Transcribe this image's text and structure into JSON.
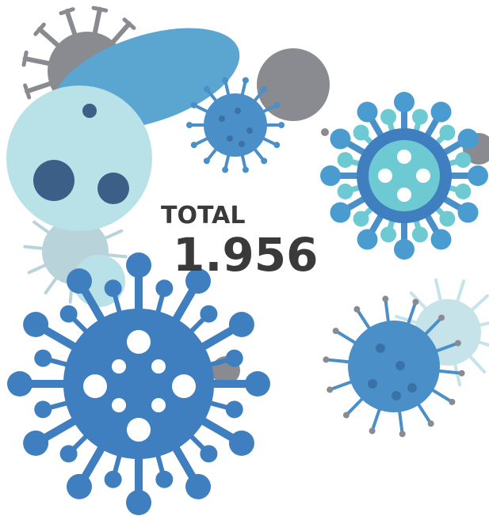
{
  "label": "TOTAL",
  "value": "1.956"
}
